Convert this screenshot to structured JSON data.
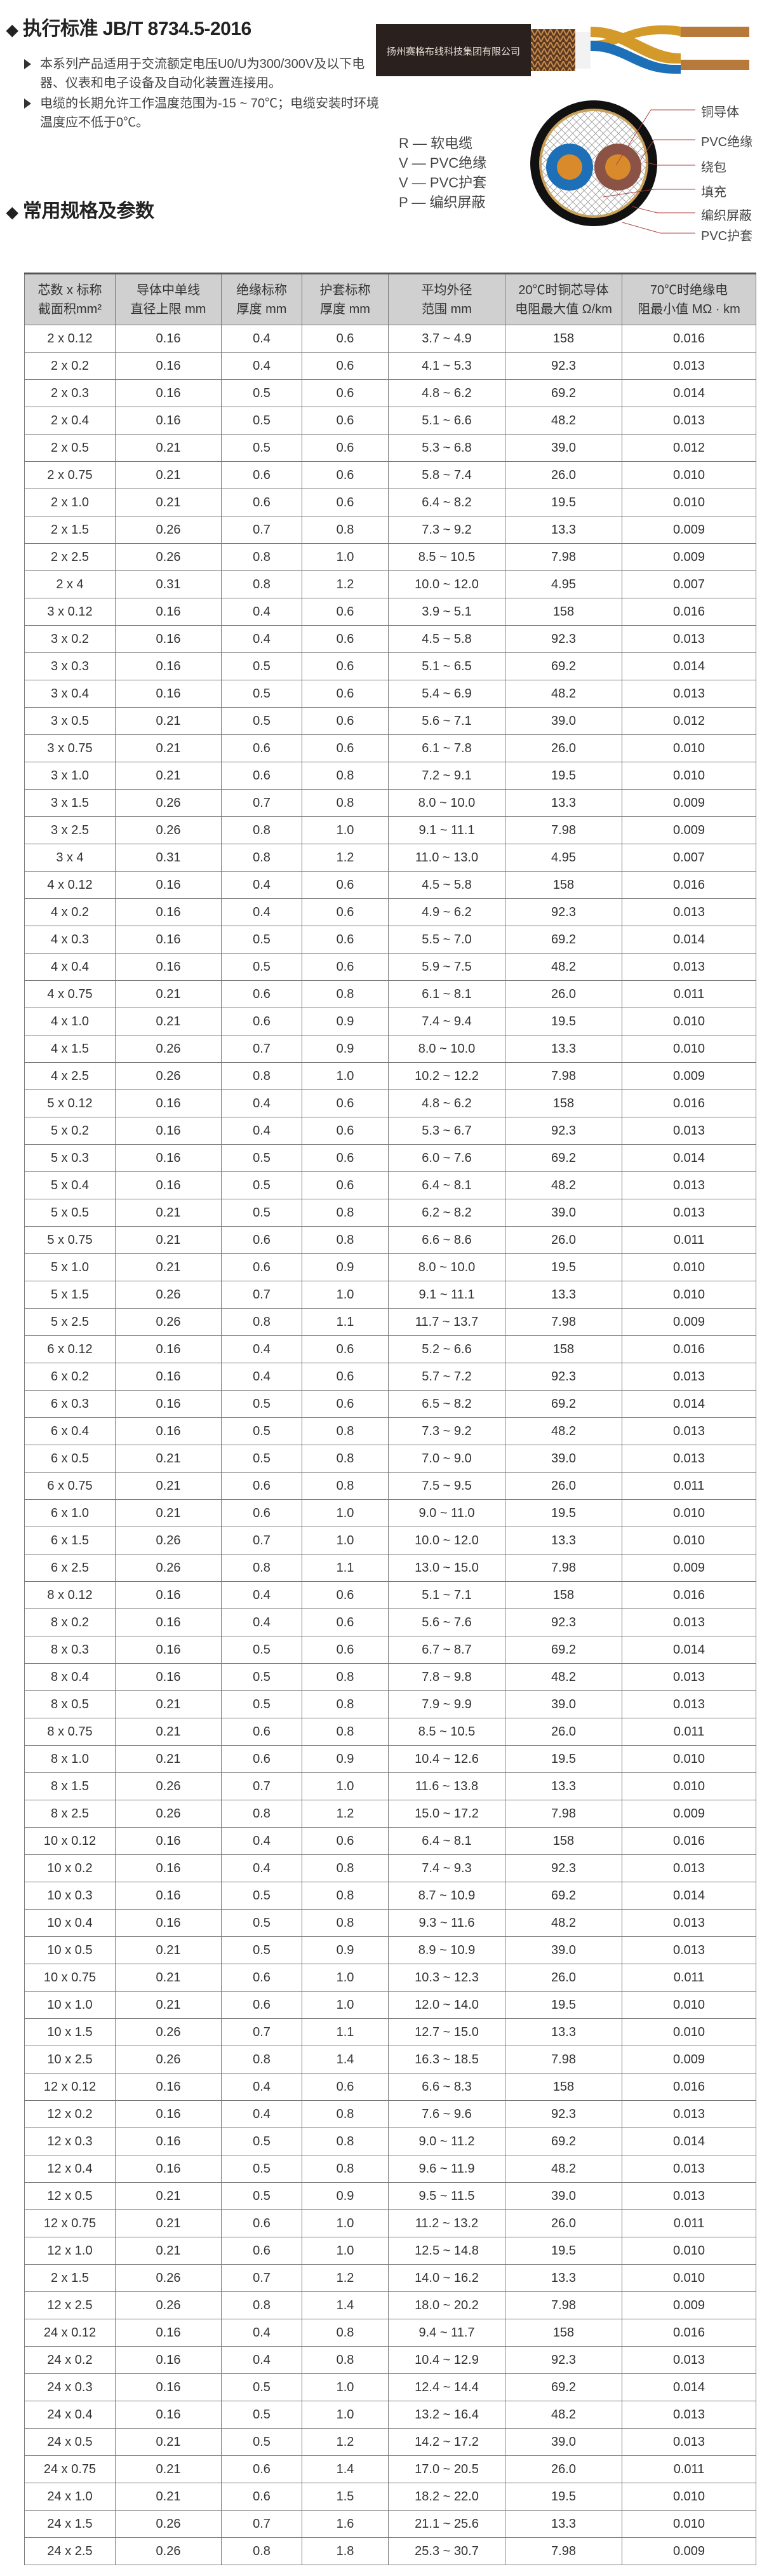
{
  "standard": {
    "title": "执行标准 JB/T 8734.5-2016"
  },
  "bullets": [
    "本系列产品适用于交流额定电压U0/U为300/300V及以下电器、仪表和电子设备及自动化装置连接用。",
    "电缆的长期允许工作温度范围为-15 ~ 70℃；电缆安装时环境温度应不低于0℃。"
  ],
  "cable_image": {
    "jacket_print": "扬州赛格布线科技集团有限公司"
  },
  "code_legend": [
    "R — 软电缆",
    "V — PVC绝缘",
    "V — PVC护套",
    "P — 编织屏蔽"
  ],
  "cross_section_labels": [
    "铜导体",
    "PVC绝缘",
    "绕包",
    "填充",
    "编织屏蔽",
    "PVC护套"
  ],
  "specs": {
    "title": "常用规格及参数"
  },
  "colors": {
    "header_bg": "#d0d0d0",
    "jacket": "#2a211e",
    "insulation_blue": "#1d6fb8",
    "insulation_brown": "#8a5346",
    "copper": "#d98a2b"
  },
  "table": {
    "headers": [
      [
        "芯数 x 标称",
        "截面积mm²"
      ],
      [
        "导体中单线",
        "直径上限 mm"
      ],
      [
        "绝缘标称",
        "厚度 mm"
      ],
      [
        "护套标称",
        "厚度 mm"
      ],
      [
        "平均外径",
        "范围 mm"
      ],
      [
        "20℃时铜芯导体",
        "电阻最大值 Ω/km"
      ],
      [
        "70℃时绝缘电",
        "阻最小值 MΩ · km"
      ]
    ],
    "rows": [
      [
        "2 x 0.12",
        "0.16",
        "0.4",
        "0.6",
        "3.7 ~ 4.9",
        "158",
        "0.016"
      ],
      [
        "2 x 0.2",
        "0.16",
        "0.4",
        "0.6",
        "4.1 ~ 5.3",
        "92.3",
        "0.013"
      ],
      [
        "2 x 0.3",
        "0.16",
        "0.5",
        "0.6",
        "4.8 ~ 6.2",
        "69.2",
        "0.014"
      ],
      [
        "2 x 0.4",
        "0.16",
        "0.5",
        "0.6",
        "5.1 ~ 6.6",
        "48.2",
        "0.013"
      ],
      [
        "2 x 0.5",
        "0.21",
        "0.5",
        "0.6",
        "5.3 ~ 6.8",
        "39.0",
        "0.012"
      ],
      [
        "2 x 0.75",
        "0.21",
        "0.6",
        "0.6",
        "5.8 ~ 7.4",
        "26.0",
        "0.010"
      ],
      [
        "2 x 1.0",
        "0.21",
        "0.6",
        "0.6",
        "6.4 ~ 8.2",
        "19.5",
        "0.010"
      ],
      [
        "2 x 1.5",
        "0.26",
        "0.7",
        "0.8",
        "7.3 ~ 9.2",
        "13.3",
        "0.009"
      ],
      [
        "2 x 2.5",
        "0.26",
        "0.8",
        "1.0",
        "8.5 ~ 10.5",
        "7.98",
        "0.009"
      ],
      [
        "2 x 4",
        "0.31",
        "0.8",
        "1.2",
        "10.0 ~ 12.0",
        "4.95",
        "0.007"
      ],
      [
        "3 x 0.12",
        "0.16",
        "0.4",
        "0.6",
        "3.9 ~ 5.1",
        "158",
        "0.016"
      ],
      [
        "3 x 0.2",
        "0.16",
        "0.4",
        "0.6",
        "4.5 ~ 5.8",
        "92.3",
        "0.013"
      ],
      [
        "3 x 0.3",
        "0.16",
        "0.5",
        "0.6",
        "5.1 ~ 6.5",
        "69.2",
        "0.014"
      ],
      [
        "3 x 0.4",
        "0.16",
        "0.5",
        "0.6",
        "5.4 ~ 6.9",
        "48.2",
        "0.013"
      ],
      [
        "3 x 0.5",
        "0.21",
        "0.5",
        "0.6",
        "5.6 ~ 7.1",
        "39.0",
        "0.012"
      ],
      [
        "3 x 0.75",
        "0.21",
        "0.6",
        "0.6",
        "6.1 ~ 7.8",
        "26.0",
        "0.010"
      ],
      [
        "3 x 1.0",
        "0.21",
        "0.6",
        "0.8",
        "7.2 ~ 9.1",
        "19.5",
        "0.010"
      ],
      [
        "3 x 1.5",
        "0.26",
        "0.7",
        "0.8",
        "8.0 ~ 10.0",
        "13.3",
        "0.009"
      ],
      [
        "3 x 2.5",
        "0.26",
        "0.8",
        "1.0",
        "9.1 ~ 11.1",
        "7.98",
        "0.009"
      ],
      [
        "3 x 4",
        "0.31",
        "0.8",
        "1.2",
        "11.0 ~ 13.0",
        "4.95",
        "0.007"
      ],
      [
        "4 x 0.12",
        "0.16",
        "0.4",
        "0.6",
        "4.5 ~ 5.8",
        "158",
        "0.016"
      ],
      [
        "4 x 0.2",
        "0.16",
        "0.4",
        "0.6",
        "4.9 ~ 6.2",
        "92.3",
        "0.013"
      ],
      [
        "4 x 0.3",
        "0.16",
        "0.5",
        "0.6",
        "5.5 ~ 7.0",
        "69.2",
        "0.014"
      ],
      [
        "4 x 0.4",
        "0.16",
        "0.5",
        "0.6",
        "5.9 ~ 7.5",
        "48.2",
        "0.013"
      ],
      [
        "4 x 0.75",
        "0.21",
        "0.6",
        "0.8",
        "6.1 ~ 8.1",
        "26.0",
        "0.011"
      ],
      [
        "4 x 1.0",
        "0.21",
        "0.6",
        "0.9",
        "7.4 ~ 9.4",
        "19.5",
        "0.010"
      ],
      [
        "4 x 1.5",
        "0.26",
        "0.7",
        "0.9",
        "8.0 ~ 10.0",
        "13.3",
        "0.010"
      ],
      [
        "4 x 2.5",
        "0.26",
        "0.8",
        "1.0",
        "10.2 ~ 12.2",
        "7.98",
        "0.009"
      ],
      [
        "5 x 0.12",
        "0.16",
        "0.4",
        "0.6",
        "4.8 ~ 6.2",
        "158",
        "0.016"
      ],
      [
        "5 x 0.2",
        "0.16",
        "0.4",
        "0.6",
        "5.3 ~ 6.7",
        "92.3",
        "0.013"
      ],
      [
        "5 x 0.3",
        "0.16",
        "0.5",
        "0.6",
        "6.0 ~ 7.6",
        "69.2",
        "0.014"
      ],
      [
        "5 x 0.4",
        "0.16",
        "0.5",
        "0.6",
        "6.4 ~ 8.1",
        "48.2",
        "0.013"
      ],
      [
        "5 x 0.5",
        "0.21",
        "0.5",
        "0.8",
        "6.2 ~ 8.2",
        "39.0",
        "0.013"
      ],
      [
        "5 x 0.75",
        "0.21",
        "0.6",
        "0.8",
        "6.6 ~ 8.6",
        "26.0",
        "0.011"
      ],
      [
        "5 x 1.0",
        "0.21",
        "0.6",
        "0.9",
        "8.0 ~ 10.0",
        "19.5",
        "0.010"
      ],
      [
        "5 x 1.5",
        "0.26",
        "0.7",
        "1.0",
        "9.1 ~ 11.1",
        "13.3",
        "0.010"
      ],
      [
        "5 x 2.5",
        "0.26",
        "0.8",
        "1.1",
        "11.7 ~ 13.7",
        "7.98",
        "0.009"
      ],
      [
        "6 x 0.12",
        "0.16",
        "0.4",
        "0.6",
        "5.2 ~ 6.6",
        "158",
        "0.016"
      ],
      [
        "6 x 0.2",
        "0.16",
        "0.4",
        "0.6",
        "5.7 ~ 7.2",
        "92.3",
        "0.013"
      ],
      [
        "6 x 0.3",
        "0.16",
        "0.5",
        "0.6",
        "6.5 ~ 8.2",
        "69.2",
        "0.014"
      ],
      [
        "6 x 0.4",
        "0.16",
        "0.5",
        "0.8",
        "7.3 ~ 9.2",
        "48.2",
        "0.013"
      ],
      [
        "6 x 0.5",
        "0.21",
        "0.5",
        "0.8",
        "7.0 ~ 9.0",
        "39.0",
        "0.013"
      ],
      [
        "6 x 0.75",
        "0.21",
        "0.6",
        "0.8",
        "7.5 ~ 9.5",
        "26.0",
        "0.011"
      ],
      [
        "6 x 1.0",
        "0.21",
        "0.6",
        "1.0",
        "9.0 ~ 11.0",
        "19.5",
        "0.010"
      ],
      [
        "6 x 1.5",
        "0.26",
        "0.7",
        "1.0",
        "10.0 ~ 12.0",
        "13.3",
        "0.010"
      ],
      [
        "6 x 2.5",
        "0.26",
        "0.8",
        "1.1",
        "13.0 ~ 15.0",
        "7.98",
        "0.009"
      ],
      [
        "8 x 0.12",
        "0.16",
        "0.4",
        "0.6",
        "5.1 ~ 7.1",
        "158",
        "0.016"
      ],
      [
        "8 x 0.2",
        "0.16",
        "0.4",
        "0.6",
        "5.6 ~ 7.6",
        "92.3",
        "0.013"
      ],
      [
        "8 x 0.3",
        "0.16",
        "0.5",
        "0.6",
        "6.7 ~ 8.7",
        "69.2",
        "0.014"
      ],
      [
        "8 x 0.4",
        "0.16",
        "0.5",
        "0.8",
        "7.8 ~ 9.8",
        "48.2",
        "0.013"
      ],
      [
        "8 x 0.5",
        "0.21",
        "0.5",
        "0.8",
        "7.9 ~ 9.9",
        "39.0",
        "0.013"
      ],
      [
        "8 x 0.75",
        "0.21",
        "0.6",
        "0.8",
        "8.5 ~ 10.5",
        "26.0",
        "0.011"
      ],
      [
        "8 x 1.0",
        "0.21",
        "0.6",
        "0.9",
        "10.4 ~ 12.6",
        "19.5",
        "0.010"
      ],
      [
        "8 x 1.5",
        "0.26",
        "0.7",
        "1.0",
        "11.6 ~ 13.8",
        "13.3",
        "0.010"
      ],
      [
        "8 x 2.5",
        "0.26",
        "0.8",
        "1.2",
        "15.0 ~ 17.2",
        "7.98",
        "0.009"
      ],
      [
        "10 x 0.12",
        "0.16",
        "0.4",
        "0.6",
        "6.4 ~ 8.1",
        "158",
        "0.016"
      ],
      [
        "10 x 0.2",
        "0.16",
        "0.4",
        "0.8",
        "7.4 ~ 9.3",
        "92.3",
        "0.013"
      ],
      [
        "10 x 0.3",
        "0.16",
        "0.5",
        "0.8",
        "8.7 ~ 10.9",
        "69.2",
        "0.014"
      ],
      [
        "10 x 0.4",
        "0.16",
        "0.5",
        "0.8",
        "9.3 ~ 11.6",
        "48.2",
        "0.013"
      ],
      [
        "10 x 0.5",
        "0.21",
        "0.5",
        "0.9",
        "8.9 ~ 10.9",
        "39.0",
        "0.013"
      ],
      [
        "10 x 0.75",
        "0.21",
        "0.6",
        "1.0",
        "10.3 ~ 12.3",
        "26.0",
        "0.011"
      ],
      [
        "10 x 1.0",
        "0.21",
        "0.6",
        "1.0",
        "12.0 ~ 14.0",
        "19.5",
        "0.010"
      ],
      [
        "10 x 1.5",
        "0.26",
        "0.7",
        "1.1",
        "12.7 ~ 15.0",
        "13.3",
        "0.010"
      ],
      [
        "10 x 2.5",
        "0.26",
        "0.8",
        "1.4",
        "16.3 ~ 18.5",
        "7.98",
        "0.009"
      ],
      [
        "12 x 0.12",
        "0.16",
        "0.4",
        "0.6",
        "6.6 ~ 8.3",
        "158",
        "0.016"
      ],
      [
        "12 x 0.2",
        "0.16",
        "0.4",
        "0.8",
        "7.6 ~ 9.6",
        "92.3",
        "0.013"
      ],
      [
        "12 x 0.3",
        "0.16",
        "0.5",
        "0.8",
        "9.0 ~ 11.2",
        "69.2",
        "0.014"
      ],
      [
        "12 x 0.4",
        "0.16",
        "0.5",
        "0.8",
        "9.6 ~ 11.9",
        "48.2",
        "0.013"
      ],
      [
        "12 x 0.5",
        "0.21",
        "0.5",
        "0.9",
        "9.5 ~ 11.5",
        "39.0",
        "0.013"
      ],
      [
        "12 x 0.75",
        "0.21",
        "0.6",
        "1.0",
        "11.2 ~ 13.2",
        "26.0",
        "0.011"
      ],
      [
        "12 x 1.0",
        "0.21",
        "0.6",
        "1.0",
        "12.5 ~ 14.8",
        "19.5",
        "0.010"
      ],
      [
        "2 x 1.5",
        "0.26",
        "0.7",
        "1.2",
        "14.0 ~ 16.2",
        "13.3",
        "0.010"
      ],
      [
        "12 x 2.5",
        "0.26",
        "0.8",
        "1.4",
        "18.0 ~ 20.2",
        "7.98",
        "0.009"
      ],
      [
        "24 x 0.12",
        "0.16",
        "0.4",
        "0.8",
        "9.4 ~ 11.7",
        "158",
        "0.016"
      ],
      [
        "24 x 0.2",
        "0.16",
        "0.4",
        "0.8",
        "10.4 ~ 12.9",
        "92.3",
        "0.013"
      ],
      [
        "24 x 0.3",
        "0.16",
        "0.5",
        "1.0",
        "12.4 ~ 14.4",
        "69.2",
        "0.014"
      ],
      [
        "24 x 0.4",
        "0.16",
        "0.5",
        "1.0",
        "13.2 ~ 16.4",
        "48.2",
        "0.013"
      ],
      [
        "24 x 0.5",
        "0.21",
        "0.5",
        "1.2",
        "14.2 ~ 17.2",
        "39.0",
        "0.013"
      ],
      [
        "24 x 0.75",
        "0.21",
        "0.6",
        "1.4",
        "17.0 ~ 20.5",
        "26.0",
        "0.011"
      ],
      [
        "24 x 1.0",
        "0.21",
        "0.6",
        "1.5",
        "18.2 ~ 22.0",
        "19.5",
        "0.010"
      ],
      [
        "24 x 1.5",
        "0.26",
        "0.7",
        "1.6",
        "21.1 ~ 25.6",
        "13.3",
        "0.010"
      ],
      [
        "24 x 2.5",
        "0.26",
        "0.8",
        "1.8",
        "25.3 ~ 30.7",
        "7.98",
        "0.009"
      ]
    ]
  }
}
